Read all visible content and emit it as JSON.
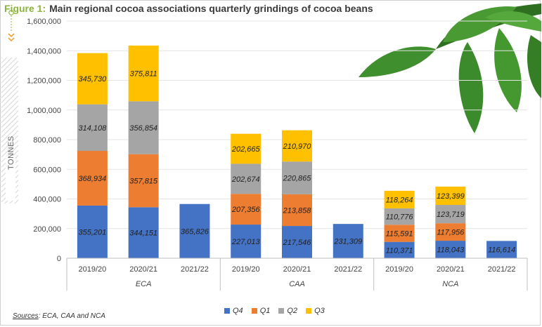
{
  "header": {
    "figure_label": "Figure 1:",
    "title": "Main regional cocoa associations quarterly grindings of cocoa beans"
  },
  "side_label": "TONNES",
  "sources": {
    "label": "Sources",
    "text": ": ECA, CAA and NCA"
  },
  "colors": {
    "Q4": "#4472c4",
    "Q1": "#ed7d31",
    "Q2": "#a5a5a5",
    "Q3": "#ffc000",
    "accent": "#8cb33e",
    "leaf": "#3f8f2e"
  },
  "chart_data": {
    "type": "bar",
    "stacked": true,
    "title": "Main regional cocoa associations quarterly grindings of cocoa beans",
    "ylabel": "TONNES",
    "ylim": [
      0,
      1600000
    ],
    "y_ticks": [
      "1,600,000",
      "1,400,000",
      "1,200,000",
      "1,000,000",
      "800,000",
      "600,000",
      "400,000",
      "200,000",
      "0"
    ],
    "groups": [
      "ECA",
      "CAA",
      "NCA"
    ],
    "categories": [
      "2019/20",
      "2020/21",
      "2021/22",
      "2019/20",
      "2020/21",
      "2021/22",
      "2019/20",
      "2020/21",
      "2021/22"
    ],
    "series": [
      {
        "name": "Q4",
        "values": [
          355201,
          344151,
          365826,
          227013,
          217546,
          231309,
          110371,
          118043,
          116614
        ],
        "labels": [
          "355,201",
          "344,151",
          "365,826",
          "227,013",
          "217,546",
          "231,309",
          "110,371",
          "118,043",
          "116,614"
        ]
      },
      {
        "name": "Q1",
        "values": [
          368934,
          357815,
          null,
          207356,
          213858,
          null,
          115591,
          117956,
          null
        ],
        "labels": [
          "368,934",
          "357,815",
          "",
          "207,356",
          "213,858",
          "",
          "115,591",
          "117,956",
          ""
        ]
      },
      {
        "name": "Q2",
        "values": [
          314108,
          356854,
          null,
          202674,
          220865,
          null,
          110776,
          123719,
          null
        ],
        "labels": [
          "314,108",
          "356,854",
          "",
          "202,674",
          "220,865",
          "",
          "110,776",
          "123,719",
          ""
        ]
      },
      {
        "name": "Q3",
        "values": [
          345730,
          375811,
          null,
          202665,
          210970,
          null,
          118264,
          123399,
          null
        ],
        "labels": [
          "345,730",
          "375,811",
          "",
          "202,665",
          "210,970",
          "",
          "118,264",
          "123,399",
          ""
        ]
      }
    ],
    "grid": true,
    "legend_position": "bottom"
  }
}
